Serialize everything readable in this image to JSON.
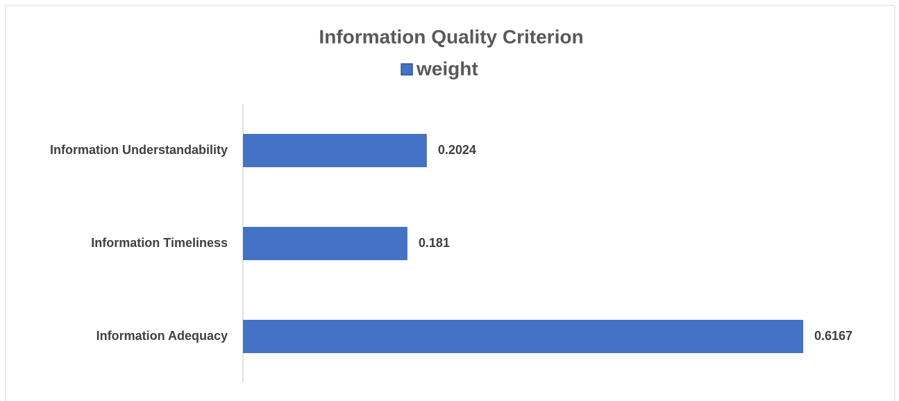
{
  "chart_data": {
    "type": "bar",
    "orientation": "horizontal",
    "title": "Information Quality Criterion",
    "categories": [
      "Information Understandability",
      "Information Timeliness",
      "Information Adequacy"
    ],
    "series": [
      {
        "name": "weight",
        "color": "#4472c4",
        "values": [
          0.2024,
          0.181,
          0.6167
        ]
      }
    ],
    "xlim": [
      0,
      0.7
    ],
    "legend": "top",
    "grid": false
  }
}
